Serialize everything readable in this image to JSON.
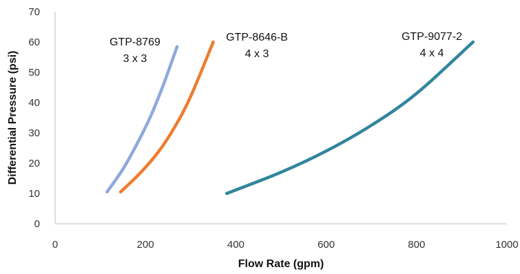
{
  "chart_data": {
    "type": "line",
    "title": "",
    "xlabel": "Flow Rate (gpm)",
    "ylabel": "Differential Pressure (psi)",
    "xlim": [
      0,
      1000
    ],
    "ylim": [
      0,
      70
    ],
    "xticks": [
      0,
      200,
      400,
      600,
      800,
      1000
    ],
    "yticks": [
      0,
      10,
      20,
      30,
      40,
      50,
      60,
      70
    ],
    "grid": false,
    "legend": "none",
    "series": [
      {
        "name": "GTP-8769",
        "annotation_lines": [
          "GTP-8769",
          "3 x 3"
        ],
        "color": "#8EA9DB",
        "x": [
          115,
          150,
          180,
          210,
          240,
          270
        ],
        "y": [
          10.5,
          18,
          26,
          35,
          46,
          58.5
        ]
      },
      {
        "name": "GTP-8646-B",
        "annotation_lines": [
          "GTP-8646-B",
          "4 x 3"
        ],
        "color": "#ED7D31",
        "x": [
          145,
          190,
          230,
          265,
          300,
          350
        ],
        "y": [
          10.5,
          17,
          24,
          32,
          42,
          60
        ]
      },
      {
        "name": "GTP-9077-2",
        "annotation_lines": [
          "GTP-9077-2",
          "4 x 4"
        ],
        "color": "#31859C",
        "x": [
          380,
          500,
          600,
          700,
          800,
          925
        ],
        "y": [
          10,
          17,
          24,
          32.5,
          43,
          60
        ]
      }
    ]
  }
}
